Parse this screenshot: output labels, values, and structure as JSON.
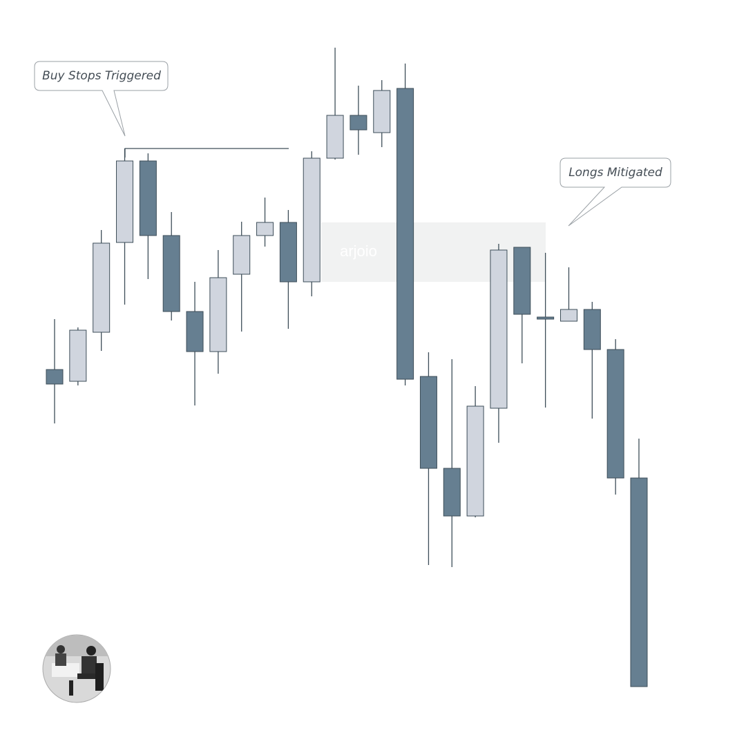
{
  "chart_data": {
    "type": "candlestick",
    "open": [
      545,
      528,
      599,
      729,
      847,
      739,
      629,
      571,
      683,
      739,
      758,
      672,
      851,
      913,
      888,
      952,
      535,
      402,
      333,
      489,
      722,
      621,
      615,
      632,
      574,
      388
    ],
    "high": [
      618,
      606,
      747,
      865,
      858,
      773,
      672,
      718,
      759,
      794,
      776,
      861,
      1011,
      956,
      964,
      988,
      570,
      560,
      521,
      727,
      722,
      714,
      693,
      643,
      589,
      445
    ],
    "low": [
      467,
      522,
      572,
      639,
      676,
      616,
      493,
      539,
      600,
      723,
      604,
      651,
      849,
      856,
      867,
      522,
      262,
      259,
      331,
      439,
      554,
      490,
      615,
      474,
      364,
      86
    ],
    "close": [
      524,
      602,
      728,
      847,
      739,
      629,
      571,
      678,
      739,
      758,
      672,
      851,
      913,
      892,
      949,
      531,
      402,
      333,
      492,
      718,
      625,
      618,
      632,
      574,
      388,
      86
    ],
    "up_color": "#d0d5de",
    "down_color": "#667f91",
    "edge_color": "#3d4d58",
    "ylim": [
      0,
      1080
    ],
    "annotations": [
      {
        "text": "Buy Stops Triggered"
      },
      {
        "text": "Longs Mitigated"
      }
    ],
    "watermark": "arjoio"
  }
}
